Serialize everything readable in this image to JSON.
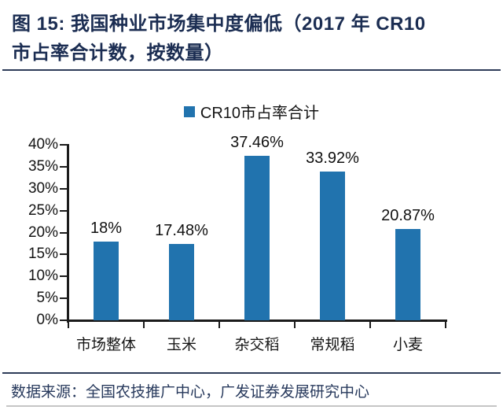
{
  "title": {
    "line1": "图 15:  我国种业市场集中度偏低（2017 年 CR10",
    "line2": "市占率合计数，按数量）"
  },
  "legend": {
    "label": "CR10市占率合计",
    "marker_color": "#2173ae"
  },
  "chart_data": {
    "type": "bar",
    "categories": [
      "市场整体",
      "玉米",
      "杂交稻",
      "常规稻",
      "小麦"
    ],
    "values": [
      18,
      17.48,
      37.46,
      33.92,
      20.87
    ],
    "value_labels": [
      "18%",
      "17.48%",
      "37.46%",
      "33.92%",
      "20.87%"
    ],
    "series_name": "CR10市占率合计",
    "title": "",
    "xlabel": "",
    "ylabel": "",
    "ylim": [
      0,
      40
    ],
    "ytick_step": 5,
    "ytick_labels": [
      "40%",
      "35%",
      "30%",
      "25%",
      "20%",
      "15%",
      "10%",
      "5%",
      "0%"
    ],
    "bar_color": "#2173ae",
    "grid": false,
    "legend_position": "top-center"
  },
  "footer": {
    "source": "数据来源：全国农技推广中心，广发证券发展研究中心"
  }
}
